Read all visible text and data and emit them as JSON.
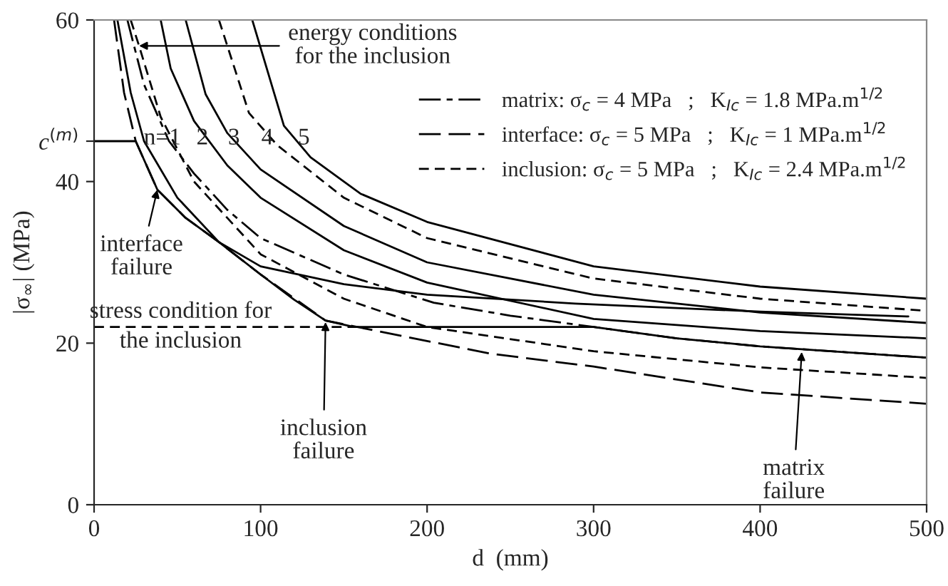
{
  "chart_data": {
    "type": "line",
    "xlabel": "d  (mm)",
    "ylabel": "|σ$_{∞}$| (MPa)",
    "xlim": [
      0,
      500
    ],
    "xticks": [
      0,
      100,
      200,
      300,
      400,
      500
    ],
    "ylim": [
      0,
      60
    ],
    "yticks": [
      0,
      20,
      40,
      60,
      {
        "value": 45,
        "label": "c$^{(m)}$"
      }
    ],
    "grid": false,
    "legend": "top right",
    "series": [
      {
        "color": "#000000",
        "line_style": "solid",
        "x": [
          0,
          25,
          38,
          55,
          75,
          100,
          120,
          139,
          156,
          300,
          350,
          400,
          450,
          500
        ],
        "values": [
          45,
          45,
          39,
          35.5,
          32.5,
          28.5,
          25.4,
          22.8,
          22,
          22,
          20.6,
          19.6,
          18.9,
          18.2
        ]
      },
      {
        "color": "#000000",
        "line_style": "dashed",
        "x": [
          0,
          156
        ],
        "values": [
          22,
          22
        ]
      },
      {
        "name": "interface: σ$_{c}$ = 5 MPa   ;   K$_{Ic}$ = 1 MPa.m$^{1/2}$",
        "color": "#000000",
        "line_style": "longdash",
        "x": [
          12,
          18,
          25,
          38,
          55,
          75,
          100,
          139,
          170,
          238,
          300,
          400,
          500
        ],
        "values": [
          60,
          51,
          45,
          39,
          35.5,
          32.5,
          28.5,
          22.8,
          21.5,
          18.7,
          17.1,
          13.9,
          12.5
        ]
      },
      {
        "name": "matrix: σ$_{c}$ = 4 MPa   ;   K$_{Ic}$ = 1.8 MPa.m$^{1/2}$",
        "color": "#000000",
        "line_style": "dashdot",
        "x": [
          20,
          30,
          45,
          60,
          80,
          100,
          150,
          204,
          250,
          300,
          350,
          400,
          500
        ],
        "values": [
          60,
          52,
          45,
          41,
          36.5,
          33,
          28.5,
          25,
          23.4,
          22,
          20.6,
          19.6,
          18.2
        ]
      },
      {
        "color": "#000000",
        "line_style": "solid",
        "x": [
          14,
          22,
          30,
          50,
          75,
          100,
          150,
          200,
          289,
          400,
          489
        ],
        "values": [
          60,
          51,
          45,
          38,
          32.5,
          29.5,
          27.3,
          26,
          24.9,
          23.9,
          23.3
        ]
      },
      {
        "name": "inclusion: σ$_{c}$ = 5 MPa   ;   K$_{Ic}$ = 2.4 MPa.m$^{1/2}$",
        "color": "#000000",
        "line_style": "dashed",
        "x": [
          22,
          27,
          40,
          60,
          100,
          150,
          200,
          300,
          400,
          500
        ],
        "values": [
          60,
          56.8,
          48,
          40,
          31,
          25.5,
          22,
          19,
          17,
          15.7
        ]
      },
      {
        "color": "#000000",
        "line_style": "solid",
        "x": [
          40,
          46,
          60,
          80,
          100,
          150,
          200,
          300,
          400,
          500
        ],
        "values": [
          60,
          54,
          47.5,
          42,
          38,
          31.5,
          27.5,
          23,
          21.5,
          20.6
        ]
      },
      {
        "color": "#000000",
        "line_style": "solid",
        "x": [
          55,
          67,
          80,
          100,
          150,
          200,
          300,
          400,
          500
        ],
        "values": [
          60,
          50.8,
          46,
          41.5,
          34.5,
          30,
          26,
          23.8,
          22.5
        ]
      },
      {
        "color": "#000000",
        "line_style": "dashed",
        "x": [
          75,
          93,
          110,
          150,
          200,
          300,
          400,
          500
        ],
        "values": [
          60,
          48.5,
          44.5,
          38,
          33,
          28,
          25.5,
          24
        ]
      },
      {
        "color": "#000000",
        "line_style": "solid",
        "x": [
          95,
          114,
          130,
          160,
          200,
          300,
          400,
          500
        ],
        "values": [
          60,
          46.9,
          43,
          38.5,
          35,
          29.5,
          27,
          25.5
        ]
      }
    ],
    "annotations": [
      {
        "text": "energy conditions\nfor the inclusion",
        "x": 27,
        "y": 56.8
      },
      {
        "text": "interface\nfailure",
        "x": 38,
        "y": 39
      },
      {
        "text": "inclusion\nfailure",
        "x": 139,
        "y": 22.6
      },
      {
        "text": "matrix\nfailure",
        "x": 425,
        "y": 18.9
      },
      {
        "text": "n=1",
        "x": 41,
        "y": 45.3
      },
      {
        "text": "2",
        "x": 65,
        "y": 45.3
      },
      {
        "text": "3",
        "x": 84,
        "y": 45.3
      },
      {
        "text": "4",
        "x": 104,
        "y": 45.3
      },
      {
        "text": "5",
        "x": 126,
        "y": 45.3
      },
      {
        "text": "stress condition for\nthe inclusion",
        "x": 52,
        "y": 22
      }
    ]
  }
}
